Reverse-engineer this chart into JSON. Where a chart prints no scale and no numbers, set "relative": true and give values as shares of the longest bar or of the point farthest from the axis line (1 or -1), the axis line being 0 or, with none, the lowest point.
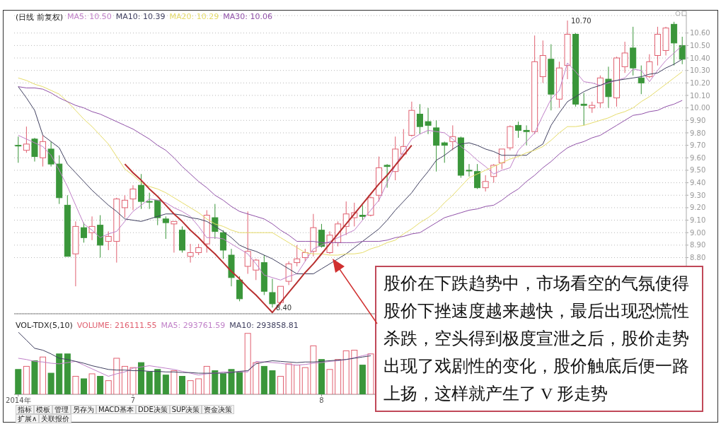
{
  "chart_data": [
    {
      "type": "candlestick",
      "title": "(日线 前复权)",
      "legend": "top left",
      "grid": "y",
      "tick_labels": "y",
      "ylim": [
        8.35,
        10.74
      ],
      "categories": [
        null,
        null,
        null,
        null,
        null,
        null,
        null,
        null,
        null,
        null,
        null,
        null,
        null,
        null,
        null,
        null,
        null,
        null,
        null,
        null,
        null,
        null,
        null,
        null,
        null,
        null,
        null,
        null,
        null,
        null,
        null,
        null,
        null,
        null,
        null,
        null,
        null,
        null,
        null,
        null,
        null,
        null,
        null,
        null,
        null,
        null,
        null,
        null,
        null,
        null,
        null,
        null,
        null,
        null,
        null,
        null,
        null,
        null,
        null,
        null,
        null,
        null,
        null,
        null,
        null,
        null,
        null,
        null,
        null,
        null,
        null,
        null,
        null,
        null,
        null,
        null,
        null,
        null,
        null,
        null,
        null,
        null
      ],
      "yticks": [
        {
          "value": 8.8,
          "label": "8.80"
        },
        {
          "value": 8.9,
          "label": "8.90"
        },
        {
          "value": 9.0,
          "label": "9.00"
        },
        {
          "value": 9.1,
          "label": "9.10"
        },
        {
          "value": 9.2,
          "label": "9.20"
        },
        {
          "value": 9.3,
          "label": "9.30"
        },
        {
          "value": 9.4,
          "label": "9.40"
        },
        {
          "value": 9.5,
          "label": "9.50"
        },
        {
          "value": 9.6,
          "label": "9.60"
        },
        {
          "value": 9.7,
          "label": "9.70"
        },
        {
          "value": 9.8,
          "label": "9.80"
        },
        {
          "value": 9.9,
          "label": "9.90"
        },
        {
          "value": 10.0,
          "label": "10.00"
        },
        {
          "value": 10.1,
          "label": "10.10"
        },
        {
          "value": 10.2,
          "label": "10.20"
        },
        {
          "value": 10.3,
          "label": "10.30"
        },
        {
          "value": 10.4,
          "label": "10.40"
        },
        {
          "value": 10.5,
          "label": "10.50"
        },
        {
          "value": 10.6,
          "label": "10.60"
        }
      ],
      "ohlc": [
        [
          9.7,
          9.77,
          9.56,
          9.7
        ],
        [
          9.66,
          9.85,
          9.64,
          9.71
        ],
        [
          9.75,
          9.76,
          9.57,
          9.61
        ],
        [
          9.6,
          9.78,
          9.53,
          9.73
        ],
        [
          9.67,
          9.73,
          9.53,
          9.55
        ],
        [
          9.55,
          9.62,
          9.23,
          9.28
        ],
        [
          9.22,
          9.3,
          8.81,
          8.81
        ],
        [
          8.83,
          9.09,
          8.57,
          9.05
        ],
        [
          9.04,
          9.08,
          8.92,
          8.96
        ],
        [
          9.0,
          9.13,
          8.94,
          9.05
        ],
        [
          9.06,
          9.14,
          8.8,
          8.9
        ],
        [
          8.93,
          9.01,
          8.86,
          8.97
        ],
        [
          8.93,
          9.28,
          8.76,
          9.27
        ],
        [
          9.2,
          9.3,
          9.12,
          9.26
        ],
        [
          9.27,
          9.38,
          9.18,
          9.35
        ],
        [
          9.38,
          9.47,
          9.19,
          9.25
        ],
        [
          9.25,
          9.32,
          9.19,
          9.25
        ],
        [
          9.26,
          9.26,
          9.06,
          9.12
        ],
        [
          9.11,
          9.13,
          8.95,
          9.08
        ],
        [
          9.07,
          9.09,
          8.84,
          9.09
        ],
        [
          9.02,
          9.05,
          8.84,
          8.86
        ],
        [
          8.81,
          8.91,
          8.76,
          8.84
        ],
        [
          8.84,
          8.91,
          8.82,
          8.88
        ],
        [
          8.91,
          9.18,
          8.84,
          9.14
        ],
        [
          9.12,
          9.23,
          8.95,
          9.01
        ],
        [
          9.0,
          9.02,
          8.79,
          8.86
        ],
        [
          8.82,
          8.87,
          8.57,
          8.64
        ],
        [
          8.62,
          8.65,
          8.45,
          8.47
        ],
        [
          8.73,
          9.17,
          8.67,
          8.85
        ],
        [
          8.7,
          8.79,
          8.62,
          8.78
        ],
        [
          8.76,
          8.82,
          8.5,
          8.53
        ],
        [
          8.52,
          8.63,
          8.4,
          8.43
        ],
        [
          8.44,
          8.57,
          8.42,
          8.57
        ],
        [
          8.61,
          8.77,
          8.58,
          8.75
        ],
        [
          8.76,
          8.9,
          8.73,
          8.79
        ],
        [
          8.8,
          8.87,
          8.77,
          8.84
        ],
        [
          8.85,
          9.15,
          8.81,
          9.04
        ],
        [
          9.02,
          9.07,
          8.88,
          8.89
        ],
        [
          8.84,
          9.01,
          8.83,
          8.98
        ],
        [
          8.92,
          9.09,
          8.89,
          9.07
        ],
        [
          9.05,
          9.25,
          8.98,
          9.15
        ],
        [
          9.12,
          9.24,
          9.05,
          9.16
        ],
        [
          9.14,
          9.22,
          9.1,
          9.13
        ],
        [
          9.14,
          9.29,
          9.13,
          9.28
        ],
        [
          9.3,
          9.61,
          9.25,
          9.52
        ],
        [
          9.54,
          9.55,
          9.36,
          9.53
        ],
        [
          9.49,
          9.77,
          9.42,
          9.67
        ],
        [
          9.63,
          9.83,
          9.62,
          9.69
        ],
        [
          9.78,
          10.05,
          9.77,
          9.98
        ],
        [
          9.95,
          10.03,
          9.79,
          9.85
        ],
        [
          9.89,
          10.0,
          9.79,
          9.86
        ],
        [
          9.84,
          9.9,
          9.49,
          9.7
        ],
        [
          9.72,
          9.73,
          9.56,
          9.7
        ],
        [
          9.73,
          9.86,
          9.66,
          9.77
        ],
        [
          9.76,
          9.77,
          9.44,
          9.46
        ],
        [
          9.5,
          9.55,
          9.45,
          9.5
        ],
        [
          9.49,
          9.55,
          9.35,
          9.36
        ],
        [
          9.36,
          9.46,
          9.33,
          9.41
        ],
        [
          9.45,
          9.55,
          9.4,
          9.54
        ],
        [
          9.56,
          9.67,
          9.51,
          9.67
        ],
        [
          9.68,
          9.86,
          9.66,
          9.85
        ],
        [
          9.86,
          9.89,
          9.76,
          9.82
        ],
        [
          9.82,
          9.86,
          9.7,
          9.81
        ],
        [
          9.81,
          10.58,
          9.79,
          10.37
        ],
        [
          10.25,
          10.54,
          10.2,
          10.42
        ],
        [
          10.39,
          10.51,
          9.98,
          10.11
        ],
        [
          10.07,
          10.37,
          10.0,
          10.32
        ],
        [
          10.34,
          10.7,
          10.23,
          10.59
        ],
        [
          10.59,
          10.6,
          10.01,
          10.03
        ],
        [
          10.03,
          10.12,
          9.86,
          10.02
        ],
        [
          10.0,
          10.05,
          9.96,
          10.02
        ],
        [
          10.04,
          10.26,
          10.0,
          10.24
        ],
        [
          10.23,
          10.33,
          10.0,
          10.09
        ],
        [
          10.08,
          10.41,
          10.01,
          10.4
        ],
        [
          10.33,
          10.53,
          10.28,
          10.44
        ],
        [
          10.48,
          10.65,
          10.26,
          10.32
        ],
        [
          10.24,
          10.34,
          10.11,
          10.2
        ],
        [
          10.25,
          10.43,
          10.24,
          10.37
        ],
        [
          10.42,
          10.65,
          10.34,
          10.59
        ],
        [
          10.46,
          10.65,
          10.42,
          10.64
        ],
        [
          10.67,
          10.69,
          10.34,
          10.52
        ],
        [
          10.5,
          10.57,
          10.35,
          10.39
        ]
      ],
      "colors": [
        "#3a963a",
        "#e06070",
        "#3a963a",
        "#e06070",
        "#3a963a",
        "#3a963a",
        "#3a963a",
        "#e06070",
        "#3a963a",
        "#e06070",
        "#3a963a",
        "#e06070",
        "#e06070",
        "#e06070",
        "#e06070",
        "#3a963a",
        "#3a963a",
        "#3a963a",
        "#3a963a",
        "#e06070",
        "#3a963a",
        "#e06070",
        "#e06070",
        "#e06070",
        "#3a963a",
        "#3a963a",
        "#3a963a",
        "#3a963a",
        "#e06070",
        "#e06070",
        "#3a963a",
        "#3a963a",
        "#e06070",
        "#e06070",
        "#e06070",
        "#e06070",
        "#e06070",
        "#3a963a",
        "#e06070",
        "#e06070",
        "#e06070",
        "#e06070",
        "#3a963a",
        "#e06070",
        "#e06070",
        "#3a963a",
        "#e06070",
        "#e06070",
        "#e06070",
        "#3a963a",
        "#3a963a",
        "#3a963a",
        "#3a963a",
        "#e06070",
        "#3a963a",
        "#3a963a",
        "#3a963a",
        "#e06070",
        "#e06070",
        "#e06070",
        "#e06070",
        "#3a963a",
        "#3a963a",
        "#e06070",
        "#e06070",
        "#3a963a",
        "#e06070",
        "#e06070",
        "#3a963a",
        "#3a963a",
        "#e06070",
        "#e06070",
        "#3a963a",
        "#e06070",
        "#e06070",
        "#3a963a",
        "#3a963a",
        "#e06070",
        "#e06070",
        "#e06070",
        "#3a963a",
        "#3a963a"
      ],
      "series": [
        {
          "type": "line",
          "name": "MA5: 10.50",
          "color": "#c080c8",
          "values": [
            9.78,
            9.75,
            9.72,
            9.69,
            9.62,
            9.5,
            9.37,
            9.22,
            9.07,
            9.02,
            8.96,
            8.99,
            9.01,
            9.09,
            9.17,
            9.22,
            9.27,
            9.26,
            9.24,
            9.2,
            9.17,
            9.13,
            9.05,
            8.96,
            8.96,
            8.95,
            8.91,
            8.87,
            8.83,
            8.75,
            8.66,
            8.64,
            8.62,
            8.65,
            8.67,
            8.77,
            8.87,
            8.9,
            8.93,
            8.96,
            8.99,
            9.02,
            9.1,
            9.18,
            9.26,
            9.4,
            9.54,
            9.65,
            9.75,
            9.79,
            9.82,
            9.81,
            9.8,
            9.75,
            9.69,
            9.64,
            9.58,
            9.53,
            9.47,
            9.5,
            9.52,
            9.66,
            9.73,
            9.8,
            9.94,
            10.07,
            10.14,
            10.36,
            10.29,
            10.21,
            10.2,
            10.18,
            10.2,
            10.22,
            10.24,
            10.31,
            10.3,
            10.21,
            10.3,
            10.38,
            10.44,
            10.5
          ]
        },
        {
          "type": "line",
          "name": "MA10: 10.39",
          "color": "#404060",
          "values": [
            10.17,
            10.08,
            9.98,
            9.78,
            9.73,
            9.68,
            9.55,
            9.48,
            9.41,
            9.34,
            9.28,
            9.22,
            9.17,
            9.11,
            9.1,
            9.09,
            9.11,
            9.13,
            9.15,
            9.15,
            9.14,
            9.12,
            9.11,
            9.09,
            9.05,
            9.01,
            8.96,
            8.9,
            8.87,
            8.85,
            8.82,
            8.79,
            8.75,
            8.71,
            8.67,
            8.67,
            8.67,
            8.71,
            8.75,
            8.79,
            8.83,
            8.88,
            8.93,
            8.98,
            9.03,
            9.1,
            9.18,
            9.25,
            9.32,
            9.41,
            9.49,
            9.58,
            9.62,
            9.67,
            9.71,
            9.72,
            9.7,
            9.67,
            9.65,
            9.62,
            9.62,
            9.62,
            9.62,
            9.67,
            9.71,
            9.86,
            9.96,
            10.05,
            10.09,
            10.13,
            10.16,
            10.18,
            10.21,
            10.22,
            10.23,
            10.24,
            10.25,
            10.27,
            10.28,
            10.32,
            10.35,
            10.39
          ]
        },
        {
          "type": "line",
          "name": "MA20: 10.29",
          "color": "#e6dc6a",
          "values": [
            10.24,
            10.22,
            10.19,
            10.17,
            10.14,
            10.11,
            10.05,
            9.98,
            9.91,
            9.85,
            9.78,
            9.71,
            9.61,
            9.51,
            9.46,
            9.4,
            9.37,
            9.35,
            9.32,
            9.28,
            9.24,
            9.2,
            9.16,
            9.11,
            9.07,
            9.05,
            9.02,
            9.0,
            9.0,
            9.0,
            9.0,
            9.0,
            8.96,
            8.92,
            8.88,
            8.84,
            8.83,
            8.83,
            8.82,
            8.82,
            8.83,
            8.83,
            8.84,
            8.87,
            8.89,
            8.92,
            8.94,
            8.99,
            9.03,
            9.08,
            9.12,
            9.17,
            9.24,
            9.3,
            9.37,
            9.44,
            9.47,
            9.5,
            9.53,
            9.56,
            9.59,
            9.61,
            9.64,
            9.66,
            9.69,
            9.74,
            9.8,
            9.85,
            9.85,
            9.86,
            9.88,
            9.9,
            9.92,
            9.95,
            9.97,
            10.0,
            10.05,
            10.09,
            10.14,
            10.19,
            10.24,
            10.29
          ]
        },
        {
          "type": "line",
          "color": "#b83030",
          "values": [
            null,
            null,
            null,
            null,
            null,
            null,
            null,
            null,
            null,
            null,
            null,
            null,
            null,
            9.55,
            9.48,
            9.42,
            9.35,
            9.29,
            9.22,
            9.15,
            9.09,
            9.02,
            8.96,
            8.89,
            8.83,
            8.76,
            8.69,
            8.63,
            8.56,
            8.5,
            8.43,
            8.36,
            8.44,
            8.52,
            8.6,
            8.68,
            8.75,
            8.83,
            8.91,
            8.99,
            9.07,
            9.15,
            9.23,
            9.31,
            9.39,
            9.46,
            9.54,
            9.62,
            9.7,
            null,
            null,
            null,
            null,
            null,
            null,
            null,
            null,
            null,
            null,
            null,
            null,
            null,
            null,
            null,
            null,
            null,
            null,
            null,
            null,
            null,
            null,
            null,
            null,
            null,
            null,
            null,
            null,
            null,
            null,
            null,
            null,
            null
          ]
        },
        {
          "type": "line",
          "name": "MA30: 10.06",
          "color": "#9050a8",
          "values": [
            10.17,
            10.16,
            10.16,
            10.15,
            10.12,
            10.08,
            10.05,
            10.02,
            10.0,
            9.97,
            9.95,
            9.92,
            9.89,
            9.86,
            9.83,
            9.79,
            9.75,
            9.7,
            9.66,
            9.6,
            9.53,
            9.47,
            9.41,
            9.36,
            9.3,
            9.26,
            9.21,
            9.17,
            9.15,
            9.13,
            9.11,
            9.07,
            9.02,
            8.98,
            8.93,
            8.93,
            8.93,
            8.92,
            8.92,
            8.92,
            8.92,
            8.92,
            8.93,
            8.93,
            8.93,
            8.94,
            8.96,
            8.97,
            8.99,
            9.0,
            9.04,
            9.08,
            9.12,
            9.14,
            9.16,
            9.18,
            9.19,
            9.21,
            9.22,
            9.26,
            9.31,
            9.35,
            9.41,
            9.46,
            9.52,
            9.57,
            9.63,
            9.68,
            9.71,
            9.73,
            9.76,
            9.78,
            9.82,
            9.86,
            9.9,
            9.94,
            9.95,
            9.97,
            9.98,
            10.01,
            10.03,
            10.06
          ]
        }
      ],
      "annotations": [
        "8.40",
        "10.70",
        "股价在下跌趋势中，市场看空的气氛使得股价下挫速度越来越快，最后出现恐慌性杀跌，空头得到极度宣泄之后，股价走势出现了戏剧性的变化，股价触底后便一路上扬，这样就产生了 V 形走势"
      ]
    },
    {
      "type": "bar",
      "title": "VOL-TDX(5,10)",
      "legend": "top left",
      "relative": true,
      "tick_labels": "x",
      "categories": [
        "2014年",
        null,
        null,
        null,
        null,
        null,
        null,
        null,
        null,
        null,
        null,
        null,
        null,
        null,
        "7",
        null,
        null,
        null,
        null,
        null,
        null,
        null,
        null,
        null,
        null,
        null,
        null,
        null,
        null,
        null,
        null,
        null,
        null,
        null,
        null,
        null,
        null,
        "8",
        null,
        null,
        null,
        null,
        null,
        null,
        null,
        null,
        null,
        null,
        null,
        null,
        null,
        null,
        null,
        null,
        null,
        null,
        null,
        null,
        null,
        null,
        null,
        null,
        null,
        null,
        null,
        null,
        null,
        null,
        null,
        null,
        null,
        null,
        null,
        null,
        null,
        null,
        null,
        null,
        null,
        null,
        null,
        null
      ],
      "series": [
        {
          "name": "VOLUME: 216111.55",
          "values": [
            0.4,
            0.45,
            0.54,
            0.6,
            0.34,
            0.65,
            0.65,
            0.29,
            0.25,
            0.33,
            0.29,
            0.22,
            0.58,
            0.45,
            0.43,
            0.51,
            0.36,
            0.4,
            0.31,
            0.38,
            0.29,
            0.22,
            0.25,
            0.45,
            0.38,
            0.33,
            0.4,
            0.36,
            0.98,
            0.51,
            0.45,
            0.38,
            0.29,
            0.49,
            0.47,
            0.43,
            0.78,
            0.56,
            0.4,
            0.56,
            0.7,
            0.71,
            0.47,
            0.65,
            null,
            null,
            null,
            null,
            null,
            null,
            null,
            null,
            null,
            null,
            null,
            null,
            null,
            null,
            null,
            null,
            null,
            null,
            null,
            null,
            null,
            null,
            null,
            null,
            null,
            null,
            null,
            null,
            null,
            null,
            null,
            null,
            null,
            null,
            null,
            null,
            null,
            null
          ],
          "colors": [
            "#3a963a",
            "#e06070",
            "#3a963a",
            "#e06070",
            "#3a963a",
            "#3a963a",
            "#3a963a",
            "#e06070",
            "#3a963a",
            "#e06070",
            "#3a963a",
            "#e06070",
            "#e06070",
            "#e06070",
            "#e06070",
            "#3a963a",
            "#3a963a",
            "#3a963a",
            "#3a963a",
            "#e06070",
            "#3a963a",
            "#e06070",
            "#e06070",
            "#e06070",
            "#3a963a",
            "#3a963a",
            "#3a963a",
            "#3a963a",
            "#e06070",
            "#e06070",
            "#3a963a",
            "#3a963a",
            "#e06070",
            "#e06070",
            "#e06070",
            "#e06070",
            "#e06070",
            "#3a963a",
            "#e06070",
            "#e06070",
            "#e06070",
            "#e06070",
            "#3a963a",
            "#e06070",
            "#e06070",
            "#3a963a",
            "#e06070",
            "#e06070",
            "#e06070",
            "#3a963a",
            "#3a963a",
            "#3a963a",
            "#3a963a",
            "#e06070",
            "#3a963a",
            "#3a963a",
            "#3a963a",
            "#e06070",
            "#e06070",
            "#e06070",
            "#e06070",
            "#3a963a",
            "#3a963a",
            "#e06070",
            "#e06070",
            "#3a963a",
            "#e06070",
            "#e06070",
            "#3a963a",
            "#3a963a",
            "#e06070",
            "#e06070",
            "#3a963a",
            "#e06070",
            "#e06070",
            "#3a963a",
            "#3a963a",
            "#e06070",
            "#e06070",
            "#e06070",
            "#3a963a",
            "#3a963a"
          ]
        },
        {
          "type": "line",
          "name": "MA5: 293761.59",
          "color": "#c080c8",
          "values": [
            0.58,
            0.56,
            0.53,
            0.52,
            0.5,
            0.49,
            0.51,
            0.53,
            0.47,
            0.41,
            0.35,
            0.29,
            0.33,
            0.36,
            0.42,
            0.44,
            0.46,
            0.44,
            0.42,
            0.4,
            0.37,
            0.34,
            0.31,
            0.33,
            0.34,
            0.36,
            0.36,
            0.36,
            0.36,
            0.53,
            0.52,
            0.51,
            0.5,
            0.48,
            0.47,
            0.48,
            0.5,
            0.51,
            0.53,
            0.54,
            0.56,
            0.59,
            0.62,
            0.65,
            null,
            null,
            null,
            null,
            null,
            null,
            null,
            null,
            null,
            null,
            null,
            null,
            null,
            null,
            null,
            null,
            null,
            null,
            null,
            null,
            null,
            null,
            null,
            null,
            null,
            null,
            null,
            null,
            null,
            null,
            null,
            null,
            null,
            null,
            null,
            null,
            null,
            null
          ]
        },
        {
          "type": "line",
          "name": "MA10: 293858.81",
          "color": "#404060",
          "values": [
            1.0,
            0.87,
            0.74,
            0.71,
            0.65,
            0.58,
            0.56,
            0.53,
            0.5,
            0.46,
            0.43,
            0.4,
            0.39,
            0.39,
            0.38,
            0.38,
            0.37,
            0.37,
            0.36,
            0.36,
            0.35,
            0.35,
            0.34,
            0.34,
            0.34,
            0.34,
            0.35,
            0.37,
            0.38,
            0.49,
            0.52,
            0.54,
            0.53,
            0.52,
            0.51,
            0.52,
            0.52,
            0.53,
            0.54,
            0.55,
            0.56,
            0.58,
            0.6,
            0.62,
            null,
            null,
            null,
            null,
            null,
            null,
            null,
            null,
            null,
            null,
            null,
            null,
            null,
            null,
            null,
            null,
            null,
            null,
            null,
            null,
            null,
            null,
            null,
            null,
            null,
            null,
            null,
            null,
            null,
            null,
            null,
            null,
            null,
            null,
            null,
            null,
            null,
            null
          ]
        }
      ],
      "annotations": [
        "指标",
        "模板",
        "管理",
        "另存为",
        "MACD基本",
        "DDE决策",
        "SUP决策",
        "资金决策",
        "扩展∧",
        "关联报价"
      ]
    }
  ]
}
